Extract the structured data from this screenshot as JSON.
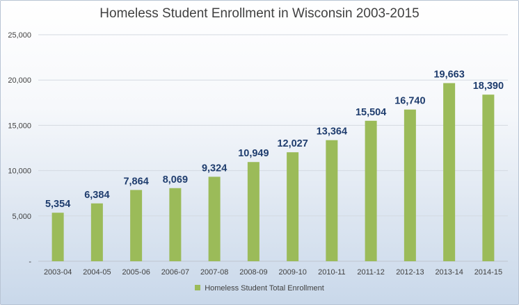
{
  "chart_data": {
    "type": "bar",
    "title": "Homeless Student Enrollment in Wisconsin 2003-2015",
    "categories": [
      "2003-04",
      "2004-05",
      "2005-06",
      "2006-07",
      "2007-08",
      "2008-09",
      "2009-10",
      "2010-11",
      "2011-12",
      "2012-13",
      "2013-14",
      "2014-15"
    ],
    "series": [
      {
        "name": "Homeless Student Total Enrollment",
        "values": [
          5354,
          6384,
          7864,
          8069,
          9324,
          10949,
          12027,
          13364,
          15504,
          16740,
          19663,
          18390
        ],
        "data_labels": [
          "5,354",
          "6,384",
          "7,864",
          "8,069",
          "9,324",
          "10,949",
          "12,027",
          "13,364",
          "15,504",
          "16,740",
          "19,663",
          "18,390"
        ],
        "color": "#9bbb59"
      }
    ],
    "ylim": [
      0,
      25000
    ],
    "yticks": [
      0,
      5000,
      10000,
      15000,
      20000,
      25000
    ],
    "ytick_labels": [
      "-",
      "5,000",
      "10,000",
      "15,000",
      "20,000",
      "25,000"
    ],
    "grid": true,
    "legend_position": "bottom",
    "data_label_color": "#1f3d6e"
  }
}
